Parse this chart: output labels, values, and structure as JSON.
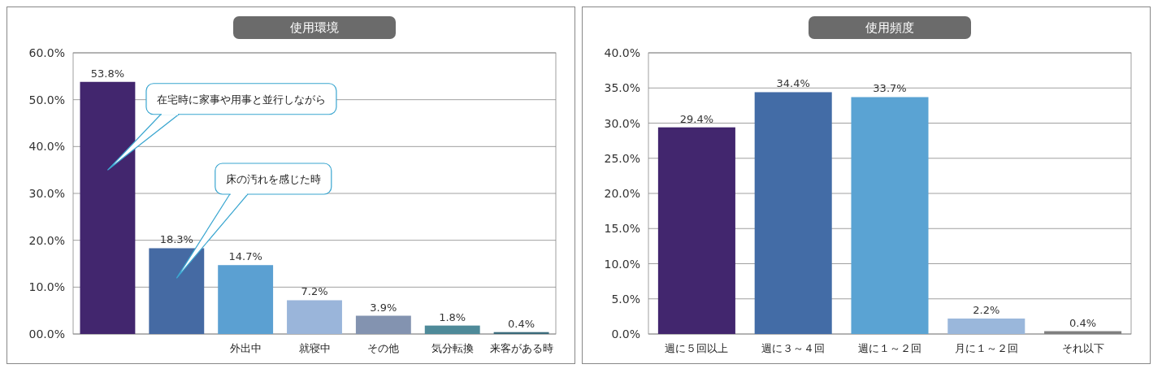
{
  "chart_data": [
    {
      "type": "bar",
      "title": "使用環境",
      "categories": [
        null,
        null,
        "外出中",
        "就寝中",
        "その他",
        "気分転換",
        "来客がある時"
      ],
      "values": [
        53.8,
        18.3,
        14.7,
        7.2,
        3.9,
        1.8,
        0.4
      ],
      "colors": [
        "#42266e",
        "#456aa3",
        "#5ba0d2",
        "#9ab5da",
        "#8393b0",
        "#4e8a99",
        "#3a6a7a"
      ],
      "ylim": [
        0,
        60
      ],
      "yticks": [
        {
          "value": 0,
          "label": "00.0%"
        },
        {
          "value": 10,
          "label": "10.0%"
        },
        {
          "value": 20,
          "label": "20.0%"
        },
        {
          "value": 30,
          "label": "30.0%"
        },
        {
          "value": 40,
          "label": "40.0%"
        },
        {
          "value": 50,
          "label": "50.0%"
        },
        {
          "value": 60,
          "label": "60.0%"
        }
      ],
      "grid": "y",
      "value_labels": [
        "53.8%",
        "18.3%",
        "14.7%",
        "7.2%",
        "3.9%",
        "1.8%",
        "0.4%"
      ],
      "annotations": [
        "在宅時に家事や用事と並行しながら",
        "床の汚れを感じた時"
      ]
    },
    {
      "type": "bar",
      "title": "使用頻度",
      "categories": [
        "週に５回以上",
        "週に３～４回",
        "週に１～２回",
        "月に１～２回",
        "それ以下"
      ],
      "values": [
        29.4,
        34.4,
        33.7,
        2.2,
        0.4
      ],
      "colors": [
        "#42266e",
        "#436ca6",
        "#5aa3d3",
        "#9ab7db",
        "#7f7f7f"
      ],
      "ylim": [
        0,
        40
      ],
      "yticks": [
        {
          "value": 0,
          "label": "0.0%"
        },
        {
          "value": 5,
          "label": "5.0%"
        },
        {
          "value": 10,
          "label": "10.0%"
        },
        {
          "value": 15,
          "label": "15.0%"
        },
        {
          "value": 20,
          "label": "20.0%"
        },
        {
          "value": 25,
          "label": "25.0%"
        },
        {
          "value": 30,
          "label": "30.0%"
        },
        {
          "value": 35,
          "label": "35.0%"
        },
        {
          "value": 40,
          "label": "40.0%"
        }
      ],
      "grid": "y",
      "value_labels": [
        "29.4%",
        "34.4%",
        "33.7%",
        "2.2%",
        "0.4%"
      ]
    }
  ]
}
